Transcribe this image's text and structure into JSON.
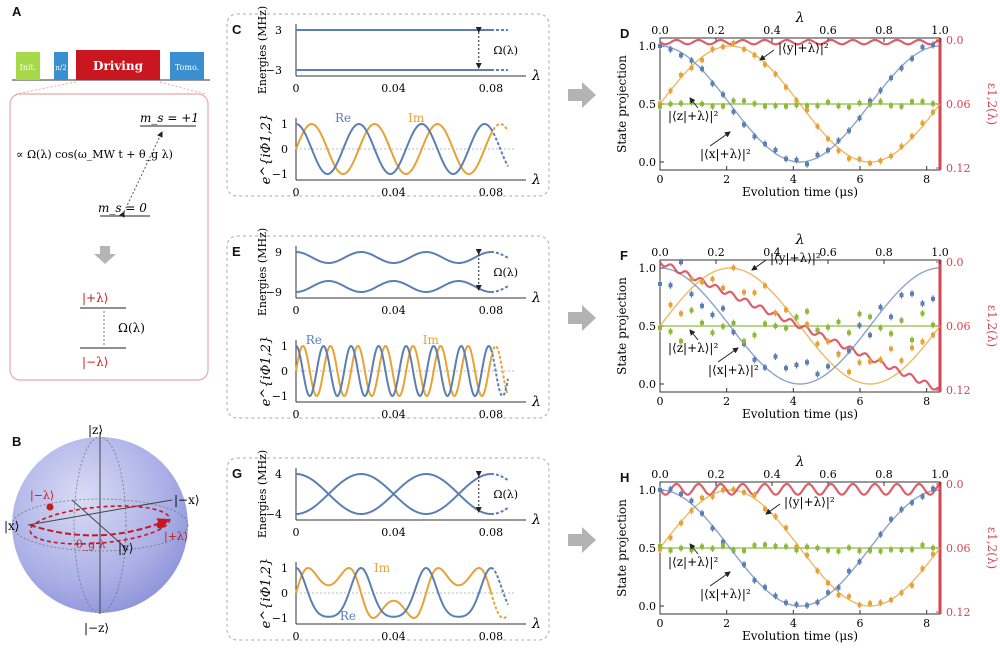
{
  "panel_labels": {
    "A": "A",
    "B": "B",
    "C": "C",
    "D": "D",
    "E": "E",
    "F": "F",
    "G": "G",
    "H": "H"
  },
  "panelA": {
    "seq_init": "Init.",
    "seq_pi2": "π/2",
    "seq_driving": "Driving",
    "seq_tomo": "Tomo.",
    "ms_plus": "m_s = +1",
    "ms_zero": "m_s = 0",
    "drive_expr": "∝ Ω(λ) cos(ω_MW t + θ_g λ)",
    "ket_plus": "|+λ⟩",
    "ket_minus": "|−λ⟩",
    "omega": "Ω(λ)"
  },
  "panelB": {
    "z": "|z⟩",
    "mz": "|−z⟩",
    "x": "|x⟩",
    "mx": "|−x⟩",
    "y": "|y⟩",
    "ket_minus": "|−λ⟩",
    "ket_plus": "|+λ⟩",
    "theta": "θ_g λ"
  },
  "colors": {
    "blue": "#5b7fb4",
    "orange": "#e8a234",
    "green": "#8db83a",
    "red": "#d9434f",
    "seq_init": "#a6d84a",
    "seq_pi2": "#3a8fd0",
    "seq_driving": "#c9161f",
    "seq_tomo": "#3a8fd0",
    "ket_red": "#c9161f",
    "frame": "#aaaaaa"
  },
  "energy_panels": {
    "ylabel": "Energies (MHz)",
    "xlabel": "λ",
    "phase_ylabel": "e^{iΦ1,2}",
    "re": "Re",
    "im": "Im",
    "omega": "Ω(λ)",
    "xticks": [
      "0",
      "0.04",
      "0.08"
    ],
    "C_yticks": [
      "3",
      "−3"
    ],
    "E_yticks": [
      "9",
      "−9"
    ],
    "G_yticks": [
      "4",
      "−4"
    ],
    "phase_yticks": [
      "1",
      "0",
      "−1"
    ]
  },
  "projection_panels": {
    "ylabel": "State projection",
    "xlabel": "Evolution time (μs)",
    "top_xlabel": "λ",
    "right_ylabel": "ε1,2(λ)",
    "xticks": [
      "0",
      "2",
      "4",
      "6",
      "8"
    ],
    "top_xticks": [
      "0.0",
      "0.2",
      "0.4",
      "0.6",
      "0.8",
      "1.0"
    ],
    "yticks": [
      "1.0",
      "0.5",
      "0.0"
    ],
    "right_yticks": [
      "0.0",
      "0.06",
      "0.12"
    ],
    "label_y": "|⟨y|+λ⟩|²",
    "label_z": "|⟨z|+λ⟩|²",
    "label_x": "|⟨x|+λ⟩|²"
  },
  "chart_data": [
    {
      "panel": "D",
      "type": "line",
      "xlabel": "Evolution time (μs)",
      "ylabel": "State projection",
      "xlim": [
        0,
        8.4
      ],
      "ylim": [
        0,
        1
      ],
      "series": [
        {
          "name": "|⟨x|+λ⟩|²"
        },
        {
          "name": "|⟨y|+λ⟩|²"
        },
        {
          "name": "|⟨z|+λ⟩|²"
        }
      ],
      "period_us": 8.4,
      "z_level": 0.5,
      "error_range": [
        0,
        0.005
      ]
    },
    {
      "panel": "F",
      "type": "line",
      "xlabel": "Evolution time (μs)",
      "ylabel": "State projection",
      "xlim": [
        0,
        8.4
      ],
      "ylim": [
        0,
        1
      ],
      "series": [
        {
          "name": "|⟨x|+λ⟩|²"
        },
        {
          "name": "|⟨y|+λ⟩|²"
        },
        {
          "name": "|⟨z|+λ⟩|²"
        }
      ],
      "period_us": 8.4,
      "z_level": 0.5,
      "error_range": [
        0,
        0.12
      ]
    },
    {
      "panel": "H",
      "type": "line",
      "xlabel": "Evolution time (μs)",
      "ylabel": "State projection",
      "xlim": [
        0,
        8.4
      ],
      "ylim": [
        0,
        1
      ],
      "series": [
        {
          "name": "|⟨x|+λ⟩|²"
        },
        {
          "name": "|⟨y|+λ⟩|²"
        },
        {
          "name": "|⟨z|+λ⟩|²"
        }
      ],
      "period_us": 8.4,
      "z_level": 0.5,
      "error_range": [
        0,
        0.012
      ]
    }
  ]
}
